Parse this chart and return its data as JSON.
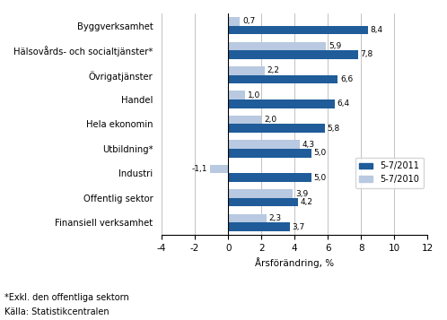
{
  "categories": [
    "Byggverksamhet",
    "Hälsovårds- och socialtjänster*",
    "Övrigatjänster",
    "Handel",
    "Hela ekonomin",
    "Utbildning*",
    "Industri",
    "Offentlig sektor",
    "Finansiell verksamhet"
  ],
  "values_2011": [
    8.4,
    7.8,
    6.6,
    6.4,
    5.8,
    5.0,
    5.0,
    4.2,
    3.7
  ],
  "values_2010": [
    0.7,
    5.9,
    2.2,
    1.0,
    2.0,
    4.3,
    -1.1,
    3.9,
    2.3
  ],
  "color_2011": "#1F5C99",
  "color_2010": "#B8C9E1",
  "xlabel": "Årsförändring, %",
  "legend_2011": "5-7/2011",
  "legend_2010": "5-7/2010",
  "xlim": [
    -4,
    12
  ],
  "xticks": [
    -4,
    -2,
    0,
    2,
    4,
    6,
    8,
    10,
    12
  ],
  "footnote1": "*Exkl. den offentliga sektorn",
  "footnote2": "Källa: Statistikcentralen",
  "bar_height": 0.35
}
